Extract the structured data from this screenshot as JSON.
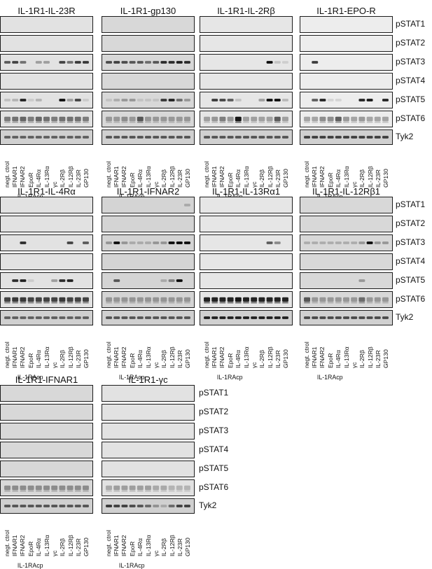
{
  "rows": [
    "pSTAT1",
    "pSTAT2",
    "pSTAT3",
    "pSTAT4",
    "pSTAT5",
    "pSTAT6",
    "Tyk2"
  ],
  "lanes": [
    "negt. ctrol",
    "IFNAR1",
    "IFNAR2",
    "EpoR",
    "IL-4Rα",
    "IL-13Rα",
    "γc",
    "IL-2Rβ",
    "IL-12Rβ",
    "IL-23R",
    "GP130"
  ],
  "xlabel": "IL-1RAcp",
  "panels": [
    {
      "title": "IL-1R1-IL-23R",
      "bg": "#e2e2e2",
      "bands": {
        "2": [
          0.6,
          0.7,
          0.5,
          0,
          0.3,
          0.3,
          0,
          0.7,
          0.5,
          0.75,
          0.75
        ],
        "4": [
          0.15,
          0.2,
          0.85,
          0.1,
          0.2,
          0,
          0,
          0.95,
          0.3,
          0.7,
          0.1
        ],
        "5": [
          0.45,
          0.5,
          0.55,
          0.45,
          0.55,
          0.5,
          0.45,
          0.5,
          0.5,
          0.5,
          0.45
        ],
        "6": [
          0.55,
          0.55,
          0.55,
          0.55,
          0.55,
          0.55,
          0.55,
          0.55,
          0.55,
          0.55,
          0.55
        ]
      }
    },
    {
      "title": "IL-1R1-gp130",
      "bg": "#d8d8d8",
      "bands": {
        "2": [
          0.65,
          0.7,
          0.65,
          0.6,
          0.6,
          0.5,
          0.6,
          0.8,
          0.8,
          0.85,
          0.8
        ],
        "4": [
          0.1,
          0.2,
          0.3,
          0.3,
          0.1,
          0.1,
          0.1,
          0.75,
          0.85,
          0.5,
          0.3
        ],
        "5": [
          0.3,
          0.3,
          0.35,
          0.3,
          0.6,
          0.3,
          0.3,
          0.3,
          0.3,
          0.3,
          0.3
        ],
        "6": [
          0.6,
          0.6,
          0.6,
          0.6,
          0.6,
          0.6,
          0.6,
          0.6,
          0.6,
          0.6,
          0.6
        ]
      }
    },
    {
      "title": "IL-1R1-IL-2Rβ",
      "bg": "#e6e6e6",
      "bands": {
        "2": [
          0,
          0,
          0,
          0,
          0,
          0,
          0,
          0,
          0.95,
          0.15,
          0.1
        ],
        "4": [
          0,
          0.75,
          0.7,
          0.6,
          0.15,
          0,
          0,
          0.3,
          0.95,
          0.95,
          0.2
        ],
        "5": [
          0.3,
          0.35,
          0.45,
          0.35,
          0.9,
          0.3,
          0.3,
          0.3,
          0.3,
          0.6,
          0.3
        ],
        "6": [
          0.6,
          0.6,
          0.6,
          0.6,
          0.6,
          0.6,
          0.6,
          0.6,
          0.6,
          0.6,
          0.6
        ]
      }
    },
    {
      "title": "IL-1R1-EPO-R",
      "bg": "#ededed",
      "bands": {
        "2": [
          0,
          0.75,
          0,
          0,
          0,
          0,
          0,
          0,
          0,
          0,
          0
        ],
        "4": [
          0,
          0.6,
          0.85,
          0.1,
          0.1,
          0,
          0,
          0.85,
          0.9,
          0,
          0.85
        ],
        "5": [
          0.3,
          0.3,
          0.4,
          0.4,
          0.6,
          0.35,
          0.3,
          0.35,
          0.3,
          0.3,
          0.3
        ],
        "6": [
          0.7,
          0.7,
          0.7,
          0.7,
          0.7,
          0.7,
          0.7,
          0.7,
          0.7,
          0.7,
          0.7
        ]
      }
    },
    {
      "title": "IL-1R1-IL-4Rα",
      "bg": "#e2e2e2",
      "bands": {
        "2": [
          0,
          0,
          0.8,
          0,
          0,
          0,
          0,
          0,
          0.7,
          0,
          0.6
        ],
        "4": [
          0,
          0.8,
          0.85,
          0.1,
          0,
          0,
          0.3,
          0.8,
          0.85,
          0,
          0
        ],
        "5": [
          0.7,
          0.75,
          0.75,
          0.7,
          0.7,
          0.7,
          0.7,
          0.75,
          0.7,
          0.7,
          0.7
        ],
        "6": [
          0.55,
          0.55,
          0.55,
          0.55,
          0.55,
          0.55,
          0.55,
          0.55,
          0.55,
          0.55,
          0.55
        ]
      }
    },
    {
      "title": "IL-1R1-IFNAR2",
      "bg": "#d4d4d4",
      "bands": {
        "0": [
          0,
          0,
          0,
          0,
          0,
          0,
          0,
          0,
          0,
          0,
          0.2
        ],
        "2": [
          0.3,
          0.95,
          0.3,
          0.2,
          0.2,
          0.2,
          0.3,
          0.3,
          0.95,
          0.98,
          0.95
        ],
        "4": [
          0,
          0.6,
          0,
          0,
          0,
          0,
          0,
          0.2,
          0.4,
          0.95,
          0
        ],
        "5": [
          0.3,
          0.3,
          0.3,
          0.3,
          0.3,
          0.3,
          0.3,
          0.3,
          0.3,
          0.3,
          0.3
        ],
        "6": [
          0.6,
          0.6,
          0.6,
          0.6,
          0.6,
          0.6,
          0.6,
          0.6,
          0.6,
          0.6,
          0.6
        ]
      }
    },
    {
      "title": "IL-1R1-IL-13Rα1",
      "bg": "#e6e6e6",
      "bands": {
        "2": [
          0,
          0,
          0,
          0,
          0,
          0,
          0,
          0,
          0.6,
          0.4,
          0
        ],
        "5": [
          0.85,
          0.85,
          0.85,
          0.85,
          0.9,
          0.85,
          0.85,
          0.85,
          0.85,
          0.85,
          0.85
        ],
        "6": [
          0.85,
          0.85,
          0.85,
          0.85,
          0.85,
          0.85,
          0.85,
          0.85,
          0.85,
          0.85,
          0.85
        ]
      }
    },
    {
      "title": "IL-1R1-IL-12Rβ1",
      "bg": "#d8d8d8",
      "bands": {
        "2": [
          0.2,
          0.2,
          0.2,
          0.2,
          0.2,
          0.2,
          0.2,
          0.3,
          0.95,
          0.3,
          0.3
        ],
        "4": [
          0,
          0,
          0,
          0,
          0,
          0,
          0,
          0.3,
          0,
          0,
          0
        ],
        "5": [
          0.6,
          0.3,
          0.3,
          0.3,
          0.3,
          0.3,
          0.3,
          0.5,
          0.3,
          0.3,
          0.3
        ],
        "6": [
          0.65,
          0.65,
          0.65,
          0.65,
          0.65,
          0.65,
          0.65,
          0.65,
          0.65,
          0.65,
          0.65
        ]
      }
    },
    {
      "title": "IL-1R1-IFNAR1",
      "bg": "#d8d8d8",
      "bands": {
        "5": [
          0.35,
          0.35,
          0.35,
          0.35,
          0.35,
          0.35,
          0.35,
          0.35,
          0.35,
          0.35,
          0.35
        ],
        "6": [
          0.6,
          0.6,
          0.6,
          0.6,
          0.6,
          0.6,
          0.6,
          0.6,
          0.6,
          0.6,
          0.6
        ]
      }
    },
    {
      "title": "IL-1R1-γc",
      "bg": "#e2e2e2",
      "bands": {
        "5": [
          0.25,
          0.3,
          0.3,
          0.3,
          0.3,
          0.3,
          0.25,
          0.25,
          0.2,
          0.2,
          0.2
        ],
        "6": [
          0.75,
          0.7,
          0.7,
          0.65,
          0.6,
          0.5,
          0.3,
          0.2,
          0.5,
          0.7,
          0.7
        ]
      }
    }
  ]
}
